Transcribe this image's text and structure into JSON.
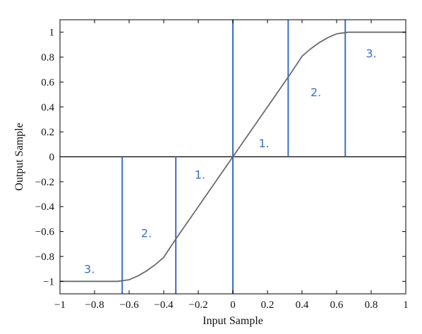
{
  "chart_data": {
    "type": "line",
    "title": "",
    "xlabel": "Input Sample",
    "ylabel": "Output Sample",
    "xlim": [
      -1,
      1
    ],
    "ylim": [
      -1.1,
      1.1
    ],
    "xticks": [
      -1,
      -0.8,
      -0.6,
      -0.4,
      -0.2,
      0,
      0.2,
      0.4,
      0.6,
      0.8,
      1
    ],
    "xtick_labels": [
      "−1",
      "−0.8",
      "−0.6",
      "−0.4",
      "−0.2",
      "0",
      "0.2",
      "0.4",
      "0.6",
      "0.8",
      "1"
    ],
    "yticks": [
      1,
      0.8,
      0.6,
      0.4,
      0.2,
      0,
      -0.2,
      -0.4,
      -0.6,
      -0.8,
      -1
    ],
    "ytick_labels": [
      "1",
      "0.8",
      "0.6",
      "0.4",
      "0.2",
      "0",
      "−0.2",
      "−0.4",
      "−0.6",
      "−0.8",
      "−1"
    ],
    "grid": false,
    "series": [
      {
        "color": "#6b6b6b",
        "x": [
          -1,
          -0.9,
          -0.8,
          -0.7,
          -0.6667,
          -0.6,
          -0.55,
          -0.5,
          -0.45,
          -0.4,
          -0.3333,
          -0.3,
          -0.2,
          -0.1,
          0,
          0.1,
          0.2,
          0.3,
          0.3333,
          0.4,
          0.45,
          0.5,
          0.55,
          0.6,
          0.6667,
          0.7,
          0.8,
          0.9,
          1
        ],
        "y": [
          -1,
          -1,
          -1,
          -1,
          -1,
          -0.9867,
          -0.9567,
          -0.9167,
          -0.8667,
          -0.8067,
          -0.6667,
          -0.6,
          -0.4,
          -0.2,
          0,
          0.2,
          0.4,
          0.6,
          0.6667,
          0.8067,
          0.8667,
          0.9167,
          0.9567,
          0.9867,
          1,
          1,
          1,
          1,
          1
        ]
      }
    ],
    "reference_lines": {
      "color": "#3a6fbf",
      "horizontal": [
        {
          "y": 0,
          "x_from": -1,
          "x_to": 1,
          "color": "#000000"
        }
      ],
      "vertical": [
        {
          "x": -0.64,
          "y_from": -1.1,
          "y_to": 0
        },
        {
          "x": -0.33,
          "y_from": -1.1,
          "y_to": 0
        },
        {
          "x": 0,
          "y_from": -1.1,
          "y_to": 1.1
        },
        {
          "x": 0.32,
          "y_from": 0,
          "y_to": 1.1
        },
        {
          "x": 0.65,
          "y_from": 0,
          "y_to": 1.1
        }
      ]
    },
    "annotations": {
      "color": "#3a6fbf",
      "items": [
        {
          "text": "3.",
          "x": 0.8,
          "y": 0.83
        },
        {
          "text": "2.",
          "x": 0.48,
          "y": 0.52
        },
        {
          "text": "1.",
          "x": 0.18,
          "y": 0.11
        },
        {
          "text": "1.",
          "x": -0.19,
          "y": -0.14
        },
        {
          "text": "2.",
          "x": -0.5,
          "y": -0.61
        },
        {
          "text": "3.",
          "x": -0.83,
          "y": -0.9
        }
      ]
    }
  }
}
